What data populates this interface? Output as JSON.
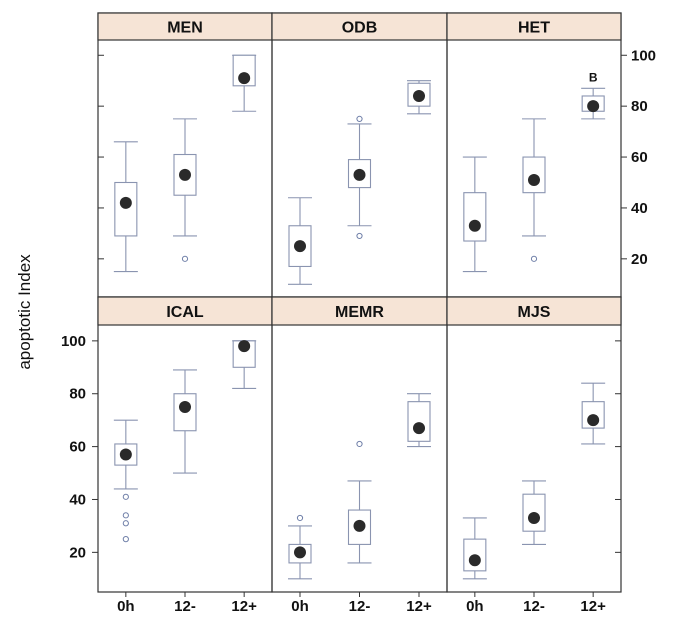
{
  "chart_data": {
    "type": "box",
    "ylabel": "apoptotic Index",
    "ylim": [
      5,
      106
    ],
    "yticks": [
      20,
      40,
      60,
      80,
      100
    ],
    "categories": [
      "0h",
      "12-",
      "12+"
    ],
    "colors": {
      "strip_fill": "#f6e4d6",
      "box_stroke": "#8a94b0",
      "median_dot": "#2a2a2a",
      "outlier": "#6f7fa8"
    },
    "panels": [
      {
        "title": "MEN",
        "boxes": [
          {
            "category": "0h",
            "whisker_low": 15,
            "q1": 29,
            "median": 42,
            "q3": 50,
            "whisker_high": 66,
            "outliers": []
          },
          {
            "category": "12-",
            "whisker_low": 29,
            "q1": 45,
            "median": 53,
            "q3": 61,
            "whisker_high": 75,
            "outliers": [
              20
            ]
          },
          {
            "category": "12+",
            "whisker_low": 78,
            "q1": 88,
            "median": 91,
            "q3": 100,
            "whisker_high": 100,
            "outliers": []
          }
        ]
      },
      {
        "title": "ODB",
        "boxes": [
          {
            "category": "0h",
            "whisker_low": 10,
            "q1": 17,
            "median": 25,
            "q3": 33,
            "whisker_high": 44,
            "outliers": []
          },
          {
            "category": "12-",
            "whisker_low": 33,
            "q1": 48,
            "median": 53,
            "q3": 59,
            "whisker_high": 73,
            "outliers": [
              29,
              75
            ]
          },
          {
            "category": "12+",
            "whisker_low": 77,
            "q1": 80,
            "median": 84,
            "q3": 89,
            "whisker_high": 90,
            "outliers": []
          }
        ]
      },
      {
        "title": "HET",
        "annotation": "B",
        "boxes": [
          {
            "category": "0h",
            "whisker_low": 15,
            "q1": 27,
            "median": 33,
            "q3": 46,
            "whisker_high": 60,
            "outliers": []
          },
          {
            "category": "12-",
            "whisker_low": 29,
            "q1": 46,
            "median": 51,
            "q3": 60,
            "whisker_high": 75,
            "outliers": [
              20
            ]
          },
          {
            "category": "12+",
            "whisker_low": 75,
            "q1": 78,
            "median": 80,
            "q3": 84,
            "whisker_high": 87,
            "outliers": []
          }
        ]
      },
      {
        "title": "ICAL",
        "boxes": [
          {
            "category": "0h",
            "whisker_low": 44,
            "q1": 53,
            "median": 57,
            "q3": 61,
            "whisker_high": 70,
            "outliers": [
              25,
              31,
              34,
              41
            ]
          },
          {
            "category": "12-",
            "whisker_low": 50,
            "q1": 66,
            "median": 75,
            "q3": 80,
            "whisker_high": 89,
            "outliers": []
          },
          {
            "category": "12+",
            "whisker_low": 82,
            "q1": 90,
            "median": 98,
            "q3": 100,
            "whisker_high": 100,
            "outliers": []
          }
        ]
      },
      {
        "title": "MEMR",
        "boxes": [
          {
            "category": "0h",
            "whisker_low": 10,
            "q1": 16,
            "median": 20,
            "q3": 23,
            "whisker_high": 30,
            "outliers": [
              33
            ]
          },
          {
            "category": "12-",
            "whisker_low": 16,
            "q1": 23,
            "median": 30,
            "q3": 36,
            "whisker_high": 47,
            "outliers": [
              61
            ]
          },
          {
            "category": "12+",
            "whisker_low": 60,
            "q1": 62,
            "median": 67,
            "q3": 77,
            "whisker_high": 80,
            "outliers": []
          }
        ]
      },
      {
        "title": "MJS",
        "boxes": [
          {
            "category": "0h",
            "whisker_low": 10,
            "q1": 13,
            "median": 17,
            "q3": 25,
            "whisker_high": 33,
            "outliers": []
          },
          {
            "category": "12-",
            "whisker_low": 23,
            "q1": 28,
            "median": 33,
            "q3": 42,
            "whisker_high": 47,
            "outliers": []
          },
          {
            "category": "12+",
            "whisker_low": 61,
            "q1": 67,
            "median": 70,
            "q3": 77,
            "whisker_high": 84,
            "outliers": []
          }
        ]
      }
    ]
  }
}
